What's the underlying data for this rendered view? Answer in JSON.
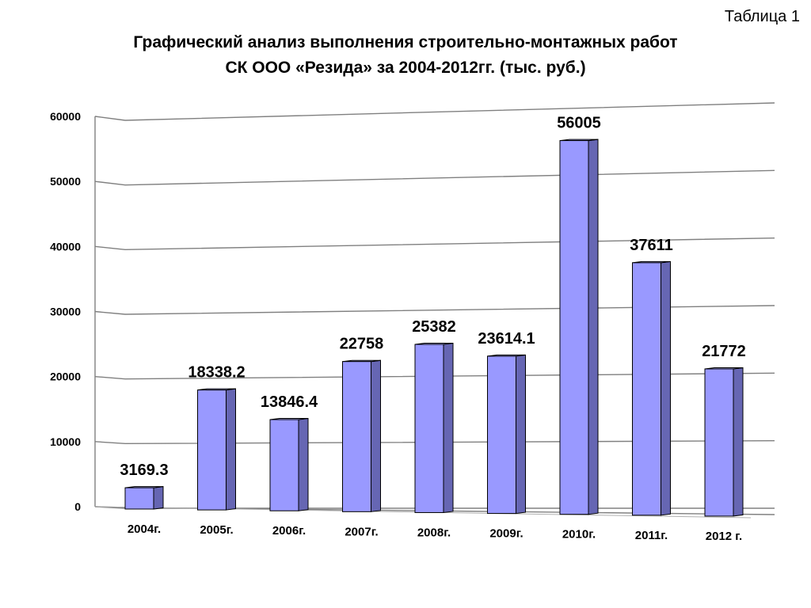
{
  "table_label": "Таблица  1",
  "title_line1": "Графический анализ выполнения строительно-монтажных работ",
  "title_line2": "СК ООО «Резида» за 2004-2012гг. (тыс. руб.)",
  "colors": {
    "bar_front": "#9999ff",
    "bar_side": "#6666b3",
    "bar_top": "#b3b3ff",
    "grid": "#808080"
  },
  "chart_data": {
    "type": "bar",
    "categories": [
      "2004г.",
      "2005г.",
      "2006г.",
      "2007г.",
      "2008г.",
      "2009г.",
      "2010г.",
      "2011г.",
      "2012 г."
    ],
    "values": [
      3169.3,
      18338.2,
      13846.4,
      22758,
      25382,
      23614.1,
      56005,
      37611,
      21772
    ],
    "value_labels": [
      "3169.3",
      "18338.2",
      "13846.4",
      "22758",
      "25382",
      "23614.1",
      "56005",
      "37611",
      "21772"
    ],
    "yticks": [
      "0",
      "10000",
      "20000",
      "30000",
      "40000",
      "50000",
      "60000"
    ],
    "ylim": [
      0,
      60000
    ],
    "grid": true,
    "legend": false
  }
}
